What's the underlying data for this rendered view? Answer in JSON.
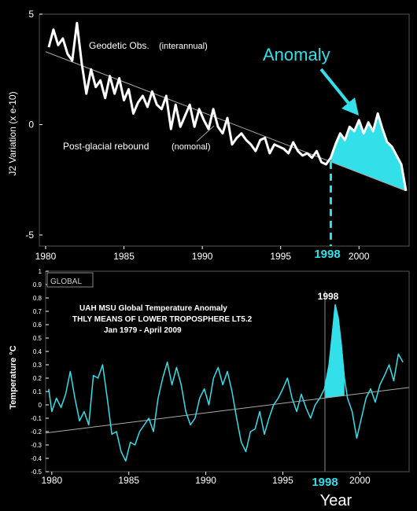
{
  "colors": {
    "background": "#000000",
    "line": "#ffffff",
    "accent": "#33dfe9",
    "trend": "#aaaaaa",
    "frame": "#555555"
  },
  "chart_data": [
    {
      "type": "line",
      "ylabel": "J2 Variation (x e-10)",
      "xlim": [
        1979.6,
        2003.2
      ],
      "ylim": [
        -5.5,
        5
      ],
      "x_ticks": [
        1980,
        1985,
        1990,
        1995,
        2000
      ],
      "y_ticks": [
        5,
        0,
        -5
      ],
      "highlight_year": "1998",
      "annotations": {
        "series": "Geodetic Obs.",
        "series_note": "(interannual)",
        "trend": "Post-glacial rebound",
        "trend_note": "(nomonal)",
        "anomaly": "Anomaly"
      },
      "trend_line": {
        "x": [
          1980,
          2003
        ],
        "y": [
          3.3,
          -3.0
        ]
      },
      "series": [
        {
          "name": "Geodetic Obs. (interannual)",
          "x": [
            1980.2,
            1980.5,
            1980.8,
            1981.1,
            1981.4,
            1981.7,
            1982.0,
            1982.3,
            1982.6,
            1982.9,
            1983.2,
            1983.5,
            1983.8,
            1984.1,
            1984.4,
            1984.7,
            1985.0,
            1985.3,
            1985.6,
            1985.9,
            1986.2,
            1986.5,
            1986.8,
            1987.1,
            1987.4,
            1987.7,
            1988.0,
            1988.3,
            1988.6,
            1988.9,
            1989.2,
            1989.5,
            1989.8,
            1990.1,
            1990.4,
            1990.7,
            1991.0,
            1991.3,
            1991.6,
            1991.9,
            1992.2,
            1992.5,
            1992.8,
            1993.1,
            1993.4,
            1993.7,
            1994.0,
            1994.3,
            1994.6,
            1994.9,
            1995.2,
            1995.5,
            1995.8,
            1996.1,
            1996.4,
            1996.7,
            1997.0,
            1997.3,
            1997.6,
            1997.9,
            1998.2,
            1998.5,
            1998.8,
            1999.1,
            1999.4,
            1999.7,
            2000.0,
            2000.3,
            2000.6,
            2000.9,
            2001.2,
            2001.5,
            2001.8,
            2002.1,
            2002.4,
            2002.7,
            2003.0
          ],
          "y": [
            3.5,
            4.3,
            3.6,
            3.9,
            3.2,
            2.9,
            4.6,
            2.8,
            1.4,
            2.5,
            1.7,
            2.0,
            1.2,
            2.2,
            1.4,
            2.1,
            1.1,
            1.6,
            0.5,
            1.0,
            1.3,
            0.8,
            1.5,
            0.9,
            0.7,
            1.3,
            -0.2,
            0.9,
            -0.1,
            0.4,
            0.9,
            -0.1,
            0.7,
            0.2,
            -0.2,
            0.7,
            -0.1,
            -0.4,
            0.3,
            -0.9,
            -0.6,
            -0.4,
            -0.7,
            -0.9,
            -1.2,
            -0.7,
            -0.6,
            -1.3,
            -0.9,
            -1.0,
            -1.1,
            -1.3,
            -0.8,
            -1.2,
            -1.4,
            -1.3,
            -1.5,
            -1.2,
            -1.7,
            -1.8,
            -1.5,
            -0.9,
            -0.4,
            -0.7,
            -0.1,
            -0.3,
            0.2,
            -0.4,
            0.1,
            -0.3,
            0.5,
            -0.2,
            -0.8,
            -1.0,
            -1.4,
            -1.8,
            -3.0
          ]
        }
      ],
      "anomaly_fill": {
        "from": 1998.2,
        "to": 2003.0
      }
    },
    {
      "type": "line",
      "ylabel": "Temperature °C",
      "xlabel": "Year",
      "xlim": [
        1979.6,
        2003.2
      ],
      "ylim": [
        -0.5,
        1.0
      ],
      "x_ticks": [
        1980,
        1985,
        1990,
        1995,
        2000
      ],
      "y_ticks": [
        1,
        0.9,
        0.8,
        0.7,
        0.6,
        0.5,
        0.4,
        0.3,
        0.2,
        0.1,
        0,
        -0.1,
        -0.2,
        -0.3,
        -0.4,
        -0.5
      ],
      "highlight_year": "1998",
      "peak_label": "1998",
      "badge": "GLOBAL",
      "title_lines": [
        "UAH MSU Global Temperature Anomaly",
        "THLY MEANS OF LOWER TROPOSPHERE LT5.2",
        "Jan 1979 - April 2009"
      ],
      "trend_line": {
        "x": [
          1979.6,
          2003.2
        ],
        "y": [
          -0.21,
          0.13
        ]
      },
      "series": [
        {
          "name": "Global Temperature Anomaly",
          "x": [
            1979.8,
            1980.0,
            1980.3,
            1980.6,
            1980.9,
            1981.2,
            1981.5,
            1981.8,
            1982.1,
            1982.4,
            1982.7,
            1983.0,
            1983.3,
            1983.6,
            1983.9,
            1984.2,
            1984.5,
            1984.8,
            1985.1,
            1985.4,
            1985.7,
            1986.0,
            1986.3,
            1986.6,
            1986.9,
            1987.2,
            1987.5,
            1987.8,
            1988.1,
            1988.4,
            1988.7,
            1989.0,
            1989.3,
            1989.6,
            1989.9,
            1990.2,
            1990.5,
            1990.8,
            1991.1,
            1991.4,
            1991.7,
            1992.0,
            1992.3,
            1992.6,
            1992.9,
            1993.2,
            1993.5,
            1993.8,
            1994.1,
            1994.4,
            1994.7,
            1995.0,
            1995.3,
            1995.6,
            1995.9,
            1996.2,
            1996.5,
            1996.8,
            1997.1,
            1997.4,
            1997.7,
            1998.0,
            1998.2,
            1998.4,
            1998.6,
            1998.8,
            1999.0,
            1999.2,
            1999.5,
            1999.8,
            2000.1,
            2000.4,
            2000.7,
            2001.0,
            2001.3,
            2001.6,
            2001.9,
            2002.2,
            2002.5,
            2002.8
          ],
          "y": [
            0.12,
            -0.05,
            0.05,
            -0.02,
            0.08,
            0.25,
            0.05,
            -0.12,
            -0.05,
            -0.15,
            0.22,
            0.2,
            0.3,
            0.05,
            -0.22,
            -0.2,
            -0.35,
            -0.42,
            -0.28,
            -0.3,
            -0.2,
            -0.15,
            -0.1,
            -0.2,
            0.05,
            0.2,
            0.32,
            0.15,
            0.28,
            0.15,
            -0.05,
            -0.15,
            -0.1,
            0.05,
            0.12,
            0.0,
            0.2,
            0.28,
            0.15,
            0.25,
            0.1,
            -0.1,
            -0.28,
            -0.35,
            -0.2,
            -0.18,
            -0.05,
            -0.22,
            -0.1,
            0.0,
            0.05,
            0.12,
            0.2,
            0.05,
            -0.05,
            0.08,
            -0.02,
            -0.1,
            0.0,
            0.05,
            0.12,
            0.3,
            0.52,
            0.75,
            0.65,
            0.45,
            0.2,
            0.05,
            -0.05,
            -0.25,
            -0.1,
            0.05,
            0.12,
            0.02,
            0.15,
            0.22,
            0.3,
            0.18,
            0.38,
            0.32
          ]
        }
      ],
      "anomaly_fill": {
        "from": 1997.7,
        "to": 1999.0
      }
    }
  ]
}
